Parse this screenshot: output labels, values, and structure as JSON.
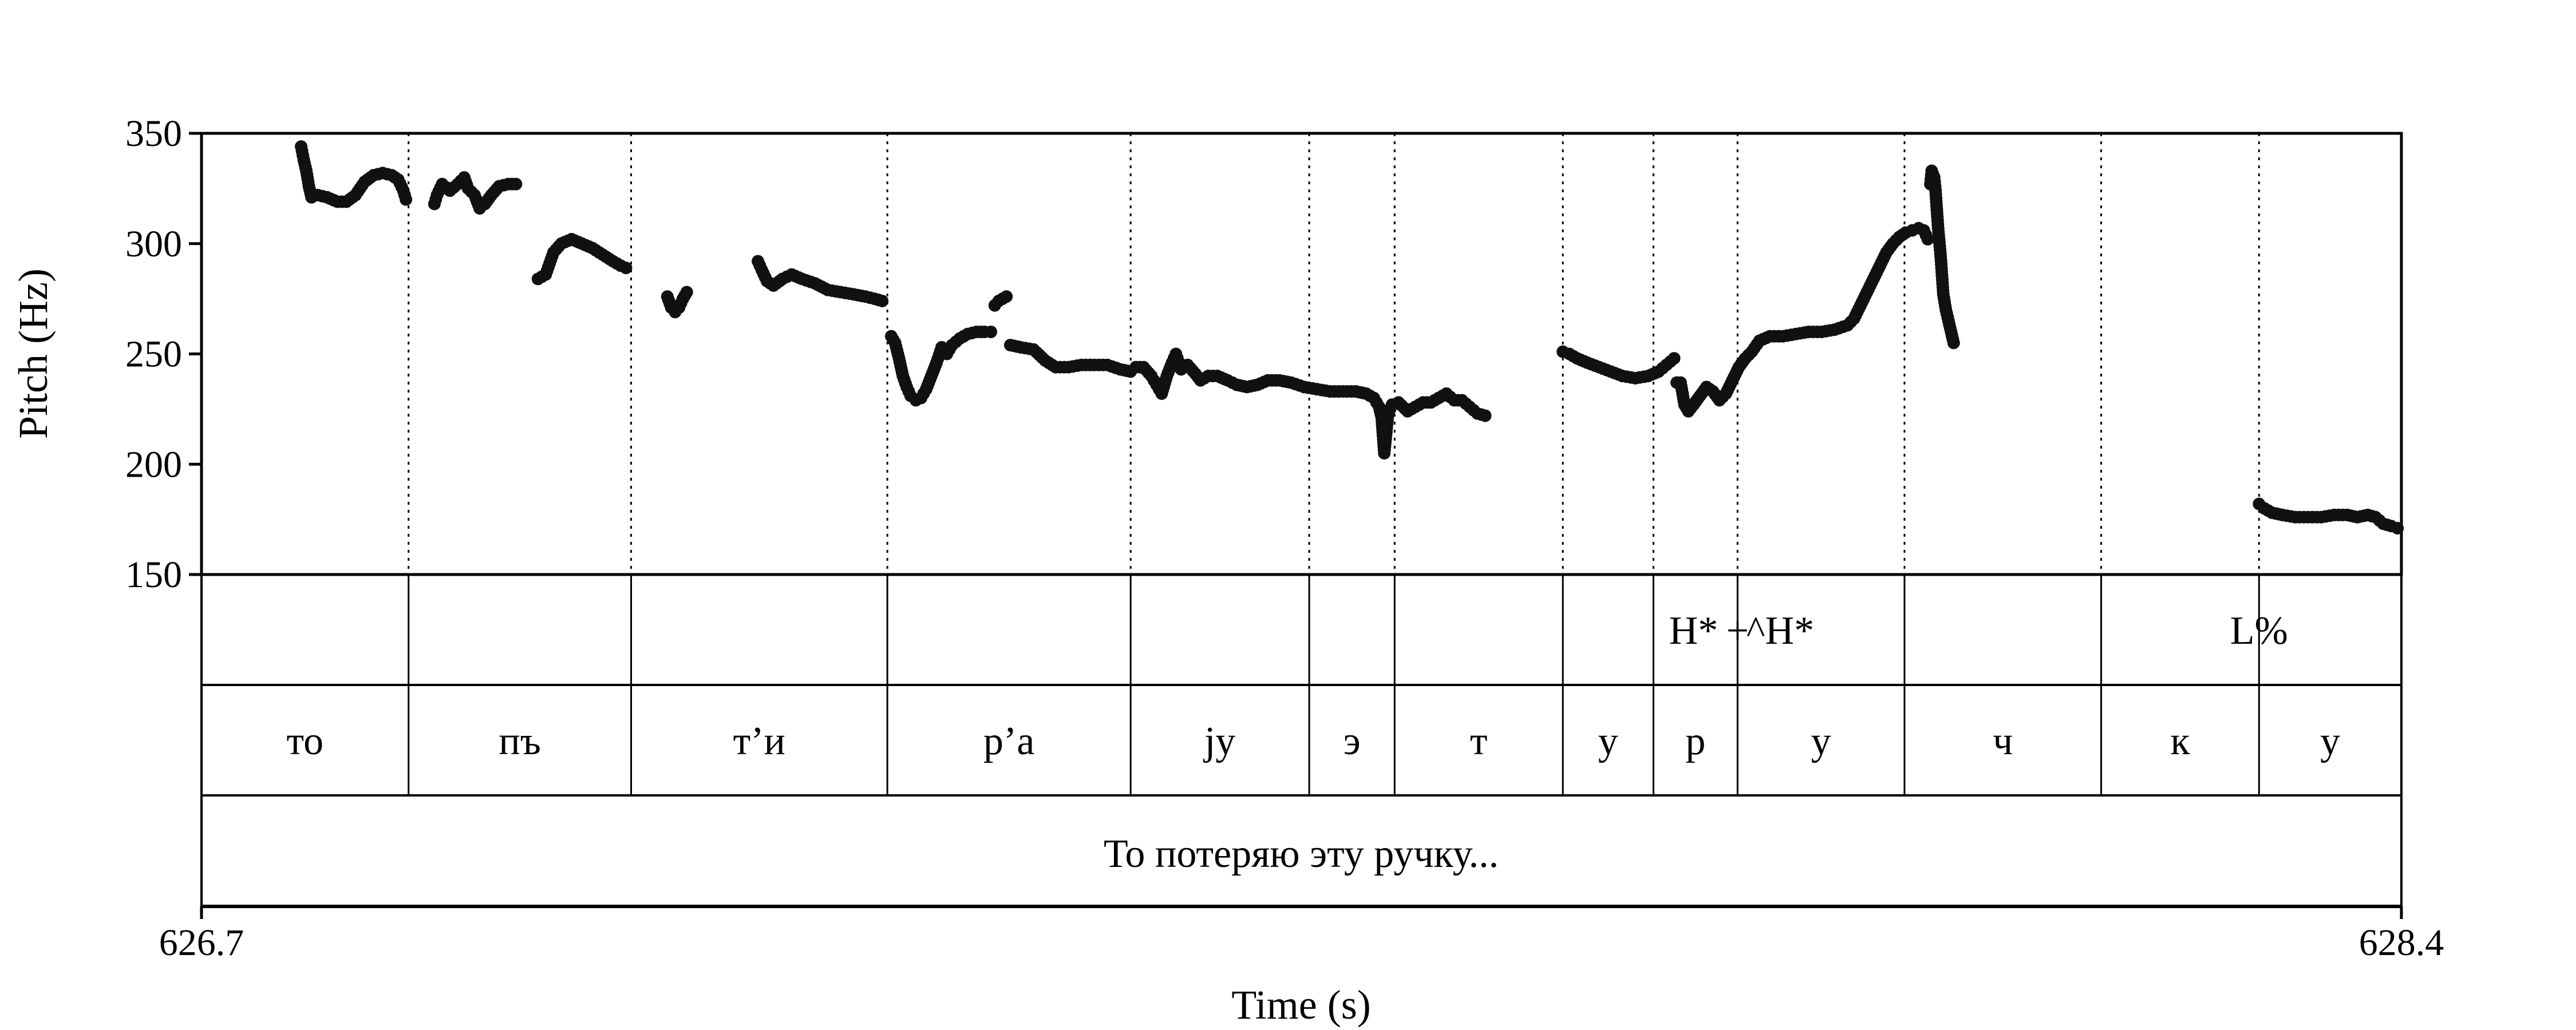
{
  "chart_data": {
    "type": "scatter",
    "xlabel": "Time (s)",
    "ylabel": "Pitch (Hz)",
    "xlim": [
      626.7,
      628.4
    ],
    "ylim": [
      150,
      350
    ],
    "x_ticks": [
      "626.7",
      "628.4"
    ],
    "y_ticks": [
      "150",
      "200",
      "250",
      "300",
      "350"
    ],
    "boundaries": [
      626.86,
      627.032,
      627.23,
      627.418,
      627.556,
      627.622,
      627.752,
      627.822,
      627.887,
      628.016,
      628.168,
      628.29
    ],
    "tones": [
      {
        "label": "H*",
        "t": 627.853
      },
      {
        "label": "+",
        "t": 627.887
      },
      {
        "label": "^H*",
        "t": 627.92
      },
      {
        "label": "L%",
        "t": 628.29
      }
    ],
    "segments": [
      {
        "label": "то",
        "start": 626.7,
        "end": 626.86
      },
      {
        "label": "пъ",
        "start": 626.86,
        "end": 627.032
      },
      {
        "label": "т’и",
        "start": 627.032,
        "end": 627.23
      },
      {
        "label": "р’а",
        "start": 627.23,
        "end": 627.418
      },
      {
        "label": "jу",
        "start": 627.418,
        "end": 627.556
      },
      {
        "label": "э",
        "start": 627.556,
        "end": 627.622
      },
      {
        "label": "т",
        "start": 627.622,
        "end": 627.752
      },
      {
        "label": "у",
        "start": 627.752,
        "end": 627.822
      },
      {
        "label": "р",
        "start": 627.822,
        "end": 627.887
      },
      {
        "label": "у",
        "start": 627.887,
        "end": 628.016
      },
      {
        "label": "ч",
        "start": 628.016,
        "end": 628.168
      },
      {
        "label": "к",
        "start": 628.168,
        "end": 628.29
      },
      {
        "label": "у",
        "start": 628.29,
        "end": 628.4
      }
    ],
    "sentence": "То потеряю эту ручку...",
    "pitch_runs": [
      [
        [
          626.777,
          344
        ],
        [
          626.779,
          338
        ],
        [
          626.781,
          333
        ],
        [
          626.783,
          326
        ],
        [
          626.785,
          321
        ],
        [
          626.79,
          322
        ],
        [
          626.797,
          321
        ],
        [
          626.805,
          319
        ],
        [
          626.812,
          319
        ],
        [
          626.819,
          322
        ],
        [
          626.826,
          328
        ],
        [
          626.833,
          331
        ],
        [
          626.84,
          332
        ],
        [
          626.847,
          331
        ],
        [
          626.852,
          329
        ],
        [
          626.856,
          324
        ],
        [
          626.858,
          320
        ]
      ],
      [
        [
          626.88,
          318
        ],
        [
          626.882,
          322
        ],
        [
          626.886,
          327
        ],
        [
          626.892,
          324
        ],
        [
          626.898,
          327
        ],
        [
          626.903,
          330
        ],
        [
          626.906,
          325
        ],
        [
          626.911,
          322
        ],
        [
          626.915,
          316
        ],
        [
          626.919,
          318
        ],
        [
          626.924,
          322
        ],
        [
          626.93,
          326
        ],
        [
          626.937,
          327
        ],
        [
          626.943,
          327
        ]
      ],
      [
        [
          626.96,
          284
        ],
        [
          626.966,
          286
        ],
        [
          626.972,
          296
        ],
        [
          626.978,
          300
        ],
        [
          626.986,
          302
        ],
        [
          626.994,
          300
        ],
        [
          627.002,
          298
        ],
        [
          627.01,
          295
        ],
        [
          627.018,
          292
        ],
        [
          627.024,
          290
        ],
        [
          627.028,
          289
        ]
      ],
      [
        [
          627.06,
          276
        ],
        [
          627.063,
          271
        ],
        [
          627.066,
          269
        ],
        [
          627.069,
          271
        ],
        [
          627.072,
          275
        ],
        [
          627.075,
          278
        ]
      ],
      [
        [
          627.13,
          292
        ],
        [
          627.133,
          288
        ],
        [
          627.137,
          283
        ],
        [
          627.142,
          281
        ],
        [
          627.149,
          284
        ],
        [
          627.156,
          286
        ],
        [
          627.164,
          284
        ],
        [
          627.174,
          282
        ],
        [
          627.184,
          279
        ],
        [
          627.194,
          278
        ],
        [
          627.204,
          277
        ],
        [
          627.213,
          276
        ],
        [
          627.22,
          275
        ],
        [
          627.226,
          274
        ]
      ],
      [
        [
          627.233,
          258
        ],
        [
          627.236,
          255
        ],
        [
          627.239,
          248
        ],
        [
          627.242,
          240
        ],
        [
          627.245,
          235
        ],
        [
          627.248,
          231
        ],
        [
          627.252,
          229
        ],
        [
          627.256,
          230
        ],
        [
          627.26,
          234
        ],
        [
          627.264,
          240
        ],
        [
          627.268,
          246
        ],
        [
          627.272,
          253
        ],
        [
          627.276,
          250
        ],
        [
          627.28,
          254
        ],
        [
          627.286,
          257
        ],
        [
          627.292,
          259
        ],
        [
          627.299,
          260
        ],
        [
          627.305,
          260
        ],
        [
          627.31,
          260
        ]
      ],
      [
        [
          627.313,
          272
        ],
        [
          627.316,
          274
        ],
        [
          627.319,
          275
        ],
        [
          627.322,
          276
        ]
      ],
      [
        [
          627.325,
          254
        ],
        [
          627.333,
          253
        ],
        [
          627.343,
          252
        ],
        [
          627.352,
          247
        ],
        [
          627.36,
          244
        ],
        [
          627.37,
          244
        ],
        [
          627.38,
          245
        ],
        [
          627.39,
          245
        ],
        [
          627.4,
          245
        ],
        [
          627.41,
          243
        ],
        [
          627.418,
          242
        ],
        [
          627.422,
          244
        ],
        [
          627.428,
          244
        ],
        [
          627.434,
          240
        ],
        [
          627.438,
          236
        ],
        [
          627.442,
          232
        ],
        [
          627.446,
          240
        ],
        [
          627.45,
          246
        ],
        [
          627.453,
          250
        ],
        [
          627.457,
          243
        ],
        [
          627.462,
          245
        ],
        [
          627.468,
          241
        ],
        [
          627.472,
          238
        ],
        [
          627.478,
          240
        ],
        [
          627.485,
          240
        ],
        [
          627.493,
          238
        ],
        [
          627.5,
          236
        ],
        [
          627.508,
          235
        ],
        [
          627.516,
          236
        ],
        [
          627.524,
          238
        ],
        [
          627.533,
          238
        ],
        [
          627.542,
          237
        ],
        [
          627.552,
          235
        ],
        [
          627.562,
          234
        ],
        [
          627.572,
          233
        ],
        [
          627.582,
          233
        ],
        [
          627.592,
          233
        ],
        [
          627.6,
          232
        ],
        [
          627.606,
          230
        ],
        [
          627.61,
          226
        ],
        [
          627.612,
          221
        ],
        [
          627.614,
          205
        ],
        [
          627.617,
          223
        ],
        [
          627.62,
          227
        ],
        [
          627.625,
          228
        ],
        [
          627.632,
          224
        ],
        [
          627.638,
          226
        ],
        [
          627.644,
          228
        ],
        [
          627.65,
          228
        ],
        [
          627.656,
          230
        ],
        [
          627.662,
          232
        ],
        [
          627.668,
          229
        ],
        [
          627.674,
          229
        ],
        [
          627.68,
          226
        ],
        [
          627.686,
          223
        ],
        [
          627.692,
          222
        ]
      ],
      [
        [
          627.752,
          251
        ],
        [
          627.757,
          250
        ],
        [
          627.763,
          248
        ],
        [
          627.771,
          246
        ],
        [
          627.78,
          244
        ],
        [
          627.789,
          242
        ],
        [
          627.798,
          240
        ],
        [
          627.808,
          239
        ],
        [
          627.818,
          240
        ],
        [
          627.826,
          242
        ],
        [
          627.832,
          245
        ],
        [
          627.838,
          248
        ]
      ],
      [
        [
          627.84,
          237
        ],
        [
          627.843,
          237
        ],
        [
          627.846,
          227
        ],
        [
          627.849,
          224
        ],
        [
          627.853,
          227
        ],
        [
          627.858,
          231
        ],
        [
          627.863,
          235
        ],
        [
          627.868,
          233
        ],
        [
          627.873,
          229
        ],
        [
          627.878,
          232
        ],
        [
          627.883,
          238
        ],
        [
          627.888,
          244
        ],
        [
          627.893,
          248
        ],
        [
          627.898,
          251
        ],
        [
          627.904,
          256
        ],
        [
          627.912,
          258
        ],
        [
          627.922,
          258
        ],
        [
          627.932,
          259
        ],
        [
          627.942,
          260
        ],
        [
          627.952,
          260
        ],
        [
          627.962,
          261
        ],
        [
          627.972,
          263
        ],
        [
          627.977,
          266
        ],
        [
          627.982,
          272
        ],
        [
          627.987,
          278
        ],
        [
          627.992,
          284
        ],
        [
          627.997,
          290
        ],
        [
          628.002,
          296
        ],
        [
          628.007,
          300
        ],
        [
          628.012,
          303
        ],
        [
          628.017,
          305
        ],
        [
          628.022,
          306
        ],
        [
          628.027,
          307
        ],
        [
          628.031,
          306
        ],
        [
          628.034,
          302
        ]
      ],
      [
        [
          628.036,
          327
        ],
        [
          628.037,
          333
        ],
        [
          628.039,
          330
        ],
        [
          628.04,
          324
        ],
        [
          628.042,
          307
        ],
        [
          628.044,
          294
        ],
        [
          628.046,
          277
        ],
        [
          628.048,
          270
        ],
        [
          628.05,
          265
        ],
        [
          628.052,
          260
        ],
        [
          628.054,
          255
        ]
      ],
      [
        [
          628.29,
          182
        ],
        [
          628.294,
          180
        ],
        [
          628.3,
          178
        ],
        [
          628.308,
          177
        ],
        [
          628.318,
          176
        ],
        [
          628.328,
          176
        ],
        [
          628.338,
          176
        ],
        [
          628.348,
          177
        ],
        [
          628.358,
          177
        ],
        [
          628.366,
          176
        ],
        [
          628.374,
          177
        ],
        [
          628.38,
          176
        ],
        [
          628.386,
          173
        ],
        [
          628.392,
          172
        ],
        [
          628.397,
          171
        ]
      ]
    ]
  }
}
